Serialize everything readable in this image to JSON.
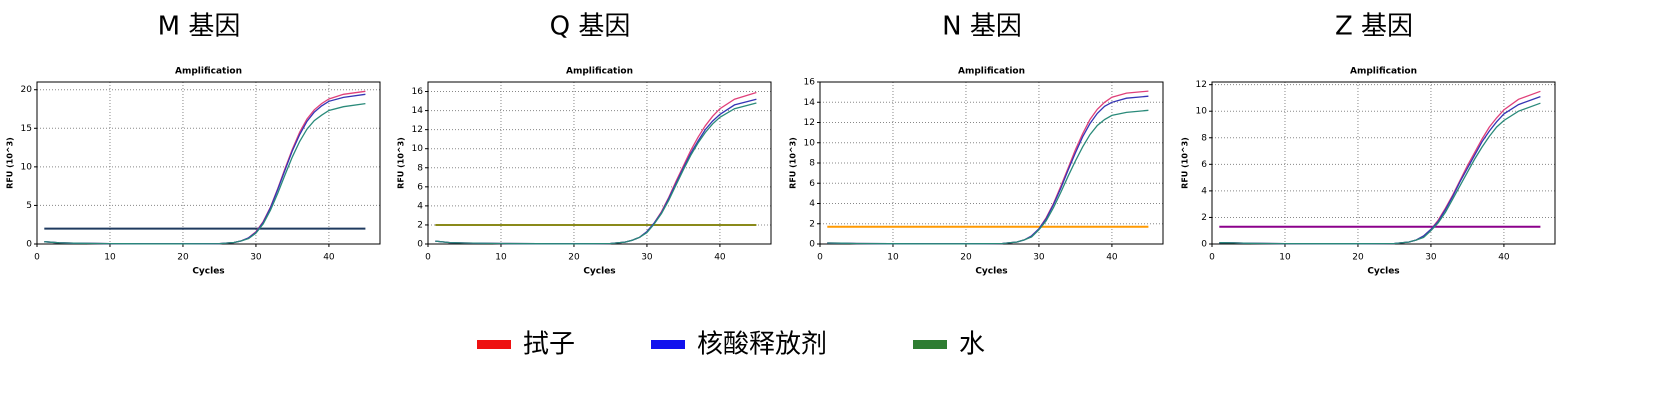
{
  "chart_data": [
    {
      "type": "line",
      "title": "M 基因",
      "plot_title": "Amplification",
      "x_label": "Cycles",
      "y_label": "RFU (10^3)",
      "x": [
        1,
        3,
        5,
        10,
        15,
        20,
        25,
        27,
        28,
        29,
        30,
        31,
        32,
        33,
        34,
        35,
        36,
        37,
        38,
        39,
        40,
        42,
        45
      ],
      "series": [
        {
          "color": "#e0407a",
          "values": [
            0.3,
            0.15,
            0.1,
            0.05,
            0.03,
            0.02,
            0.05,
            0.2,
            0.4,
            0.8,
            1.6,
            2.9,
            4.8,
            7.2,
            9.8,
            12.3,
            14.5,
            16.2,
            17.4,
            18.2,
            18.8,
            19.4,
            19.8
          ]
        },
        {
          "color": "#3535b5",
          "values": [
            0.3,
            0.15,
            0.1,
            0.05,
            0.03,
            0.02,
            0.05,
            0.2,
            0.4,
            0.8,
            1.5,
            2.8,
            4.7,
            7.1,
            9.6,
            12.1,
            14.2,
            15.9,
            17.1,
            17.9,
            18.5,
            19.0,
            19.4
          ]
        },
        {
          "color": "#2a8a7a",
          "values": [
            0.3,
            0.15,
            0.1,
            0.05,
            0.03,
            0.02,
            0.05,
            0.2,
            0.4,
            0.7,
            1.4,
            2.6,
            4.4,
            6.6,
            9.0,
            11.3,
            13.3,
            14.9,
            16.0,
            16.7,
            17.3,
            17.8,
            18.2
          ]
        }
      ],
      "threshold": {
        "value": 2,
        "color": "#1f3a5f"
      },
      "xlim": [
        0,
        47
      ],
      "xticks": [
        0,
        10,
        20,
        30,
        40
      ],
      "ylim": [
        0,
        21
      ],
      "yticks": [
        0,
        5,
        10,
        15,
        20
      ],
      "grid": true
    },
    {
      "type": "line",
      "title": "Q 基因",
      "plot_title": "Amplification",
      "x_label": "Cycles",
      "y_label": "RFU (10^3)",
      "x": [
        1,
        3,
        5,
        10,
        15,
        20,
        25,
        27,
        28,
        29,
        30,
        31,
        32,
        33,
        34,
        35,
        36,
        37,
        38,
        39,
        40,
        42,
        45
      ],
      "series": [
        {
          "color": "#e0407a",
          "values": [
            0.3,
            0.15,
            0.1,
            0.05,
            0.03,
            0.02,
            0.05,
            0.2,
            0.4,
            0.7,
            1.3,
            2.2,
            3.4,
            4.9,
            6.6,
            8.2,
            9.8,
            11.2,
            12.4,
            13.4,
            14.2,
            15.2,
            15.9
          ]
        },
        {
          "color": "#3535b5",
          "values": [
            0.3,
            0.15,
            0.1,
            0.05,
            0.03,
            0.02,
            0.05,
            0.2,
            0.4,
            0.7,
            1.3,
            2.2,
            3.3,
            4.8,
            6.4,
            8.0,
            9.5,
            10.8,
            12.0,
            12.9,
            13.6,
            14.6,
            15.2
          ]
        },
        {
          "color": "#2a8a7a",
          "values": [
            0.3,
            0.15,
            0.1,
            0.05,
            0.03,
            0.02,
            0.05,
            0.2,
            0.4,
            0.7,
            1.2,
            2.1,
            3.2,
            4.6,
            6.2,
            7.8,
            9.3,
            10.6,
            11.7,
            12.6,
            13.3,
            14.2,
            14.8
          ]
        }
      ],
      "threshold": {
        "value": 2,
        "color": "#8a8a1a"
      },
      "xlim": [
        0,
        47
      ],
      "xticks": [
        0,
        10,
        20,
        30,
        40
      ],
      "ylim": [
        0,
        17
      ],
      "yticks": [
        0,
        2,
        4,
        6,
        8,
        10,
        12,
        14,
        16
      ],
      "grid": true
    },
    {
      "type": "line",
      "title": "N 基因",
      "plot_title": "Amplification",
      "x_label": "Cycles",
      "y_label": "RFU (10^3)",
      "x": [
        1,
        3,
        5,
        10,
        15,
        20,
        25,
        27,
        28,
        29,
        30,
        31,
        32,
        33,
        34,
        35,
        36,
        37,
        38,
        39,
        40,
        42,
        45
      ],
      "series": [
        {
          "color": "#e0407a",
          "values": [
            0.1,
            0.08,
            0.05,
            0.03,
            0.02,
            0.02,
            0.05,
            0.2,
            0.4,
            0.8,
            1.5,
            2.6,
            4.0,
            5.7,
            7.5,
            9.3,
            10.9,
            12.3,
            13.3,
            14.0,
            14.5,
            14.9,
            15.1
          ]
        },
        {
          "color": "#3535b5",
          "values": [
            0.1,
            0.08,
            0.05,
            0.03,
            0.02,
            0.02,
            0.05,
            0.2,
            0.4,
            0.8,
            1.5,
            2.5,
            3.9,
            5.5,
            7.3,
            9.0,
            10.6,
            11.9,
            12.9,
            13.6,
            14.0,
            14.4,
            14.6
          ]
        },
        {
          "color": "#2a8a7a",
          "values": [
            0.1,
            0.08,
            0.05,
            0.03,
            0.02,
            0.02,
            0.05,
            0.2,
            0.4,
            0.7,
            1.4,
            2.3,
            3.6,
            5.1,
            6.7,
            8.2,
            9.6,
            10.8,
            11.7,
            12.3,
            12.7,
            13.0,
            13.2
          ]
        }
      ],
      "threshold": {
        "value": 1.7,
        "color": "#ff9900"
      },
      "xlim": [
        0,
        47
      ],
      "xticks": [
        0,
        10,
        20,
        30,
        40
      ],
      "ylim": [
        0,
        16
      ],
      "yticks": [
        0,
        2,
        4,
        6,
        8,
        10,
        12,
        14,
        16
      ],
      "grid": true
    },
    {
      "type": "line",
      "title": "Z 基因",
      "plot_title": "Amplification",
      "x_label": "Cycles",
      "y_label": "RFU (10^3)",
      "x": [
        1,
        3,
        5,
        10,
        15,
        20,
        25,
        27,
        28,
        29,
        30,
        31,
        32,
        33,
        34,
        35,
        36,
        37,
        38,
        39,
        40,
        42,
        45
      ],
      "series": [
        {
          "color": "#e0407a",
          "values": [
            0.1,
            0.08,
            0.05,
            0.03,
            0.02,
            0.02,
            0.04,
            0.15,
            0.3,
            0.6,
            1.1,
            1.8,
            2.7,
            3.7,
            4.8,
            5.9,
            6.9,
            7.9,
            8.8,
            9.5,
            10.1,
            10.9,
            11.5
          ]
        },
        {
          "color": "#3535b5",
          "values": [
            0.1,
            0.08,
            0.05,
            0.03,
            0.02,
            0.02,
            0.04,
            0.15,
            0.3,
            0.6,
            1.1,
            1.7,
            2.6,
            3.6,
            4.7,
            5.7,
            6.7,
            7.7,
            8.5,
            9.2,
            9.8,
            10.5,
            11.1
          ]
        },
        {
          "color": "#2a8a7a",
          "values": [
            0.1,
            0.08,
            0.05,
            0.03,
            0.02,
            0.02,
            0.04,
            0.15,
            0.3,
            0.5,
            1.0,
            1.6,
            2.4,
            3.4,
            4.4,
            5.4,
            6.4,
            7.3,
            8.1,
            8.8,
            9.3,
            10.0,
            10.6
          ]
        }
      ],
      "threshold": {
        "value": 1.3,
        "color": "#8b008b"
      },
      "xlim": [
        0,
        47
      ],
      "xticks": [
        0,
        10,
        20,
        30,
        40
      ],
      "ylim": [
        0,
        12.2
      ],
      "yticks": [
        0,
        2,
        4,
        6,
        8,
        10,
        12
      ],
      "grid": true
    }
  ],
  "legend": [
    {
      "name": "拭子",
      "color": "#ee1111"
    },
    {
      "name": "核酸释放剂",
      "color": "#1111ee"
    },
    {
      "name": "水",
      "color": "#2e7d32"
    }
  ]
}
